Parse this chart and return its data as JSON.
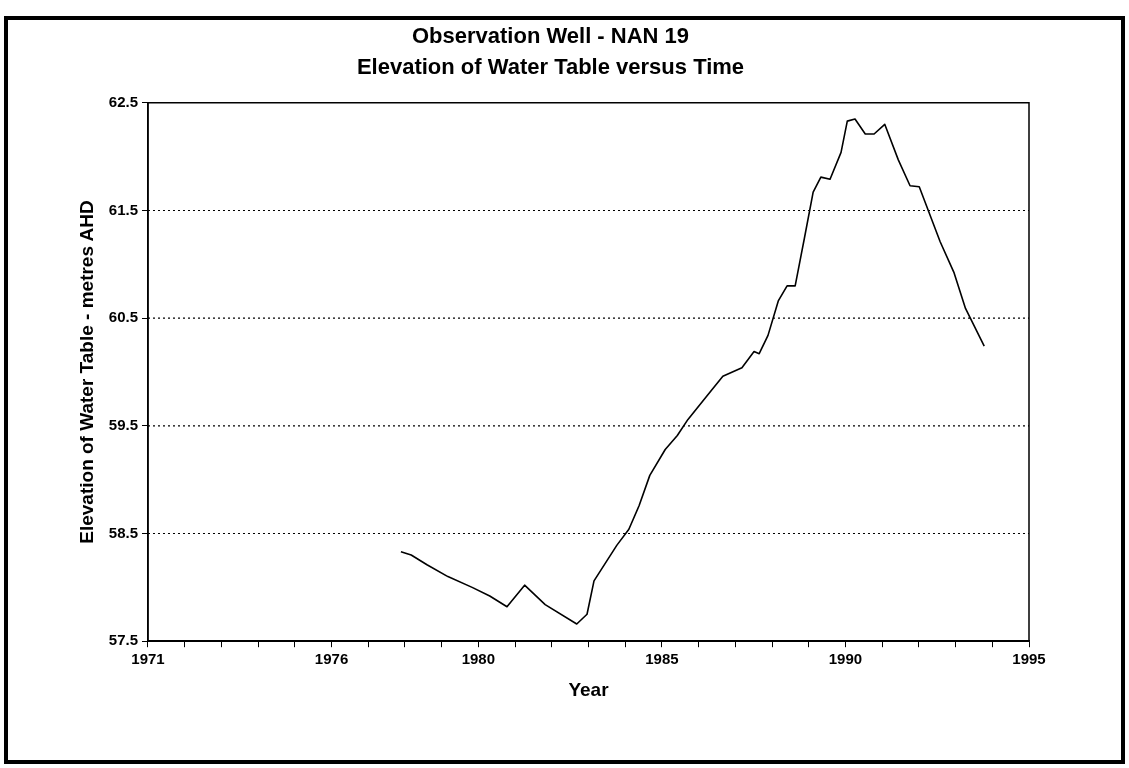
{
  "chart_data": {
    "type": "line",
    "title": "Observation Well - NAN 19",
    "subtitle": "Elevation of Water Table versus Time",
    "xlabel": "Year",
    "ylabel": "Elevation of Water Table - metres AHD",
    "xlim": [
      1971,
      1995
    ],
    "xticks": [
      1971,
      {
        "value": 1972,
        "label": null
      },
      {
        "value": 1973,
        "label": null
      },
      {
        "value": 1974,
        "label": null
      },
      {
        "value": 1975,
        "label": null
      },
      1976,
      {
        "value": 1977,
        "label": null
      },
      {
        "value": 1978,
        "label": null
      },
      {
        "value": 1979,
        "label": null
      },
      1980,
      {
        "value": 1981,
        "label": null
      },
      {
        "value": 1982,
        "label": null
      },
      {
        "value": 1983,
        "label": null
      },
      {
        "value": 1984,
        "label": null
      },
      1985,
      {
        "value": 1986,
        "label": null
      },
      {
        "value": 1987,
        "label": null
      },
      {
        "value": 1988,
        "label": null
      },
      {
        "value": 1989,
        "label": null
      },
      1990,
      {
        "value": 1991,
        "label": null
      },
      {
        "value": 1992,
        "label": null
      },
      {
        "value": 1993,
        "label": null
      },
      {
        "value": 1994,
        "label": null
      },
      1995
    ],
    "ylim": [
      57.5,
      62.5
    ],
    "yticks": [
      57.5,
      58.5,
      59.5,
      60.5,
      61.5,
      62.5
    ],
    "grid": "y",
    "marker": "none",
    "line_style": "solid",
    "series": [
      {
        "color": "#000000",
        "x": [
          1977.89,
          1978.17,
          1978.6,
          1979.17,
          1979.83,
          1980.31,
          1980.78,
          1981.26,
          1981.82,
          1982.68,
          1982.96,
          1983.15,
          1983.77,
          1984.1,
          1984.38,
          1984.67,
          1985.09,
          1985.42,
          1985.71,
          1986.23,
          1986.66,
          1987.18,
          1987.51,
          1987.65,
          1987.89,
          1988.17,
          1988.41,
          1988.63,
          1988.88,
          1989.12,
          1989.33,
          1989.58,
          1989.88,
          1990.05,
          1990.26,
          1990.54,
          1990.78,
          1991.07,
          1991.44,
          1991.76,
          1992.01,
          1992.58,
          1992.96,
          1993.27,
          1993.78
        ],
        "values": [
          58.33,
          58.3,
          58.21,
          58.1,
          58.0,
          57.92,
          57.82,
          58.02,
          57.84,
          57.66,
          57.75,
          58.06,
          58.39,
          58.54,
          58.76,
          59.04,
          59.28,
          59.41,
          59.56,
          59.78,
          59.96,
          60.04,
          60.19,
          60.17,
          60.34,
          60.66,
          60.8,
          60.8,
          61.24,
          61.67,
          61.81,
          61.79,
          62.04,
          62.33,
          62.35,
          62.21,
          62.21,
          62.3,
          61.97,
          61.73,
          61.72,
          61.21,
          60.92,
          60.59,
          60.24
        ]
      }
    ]
  }
}
